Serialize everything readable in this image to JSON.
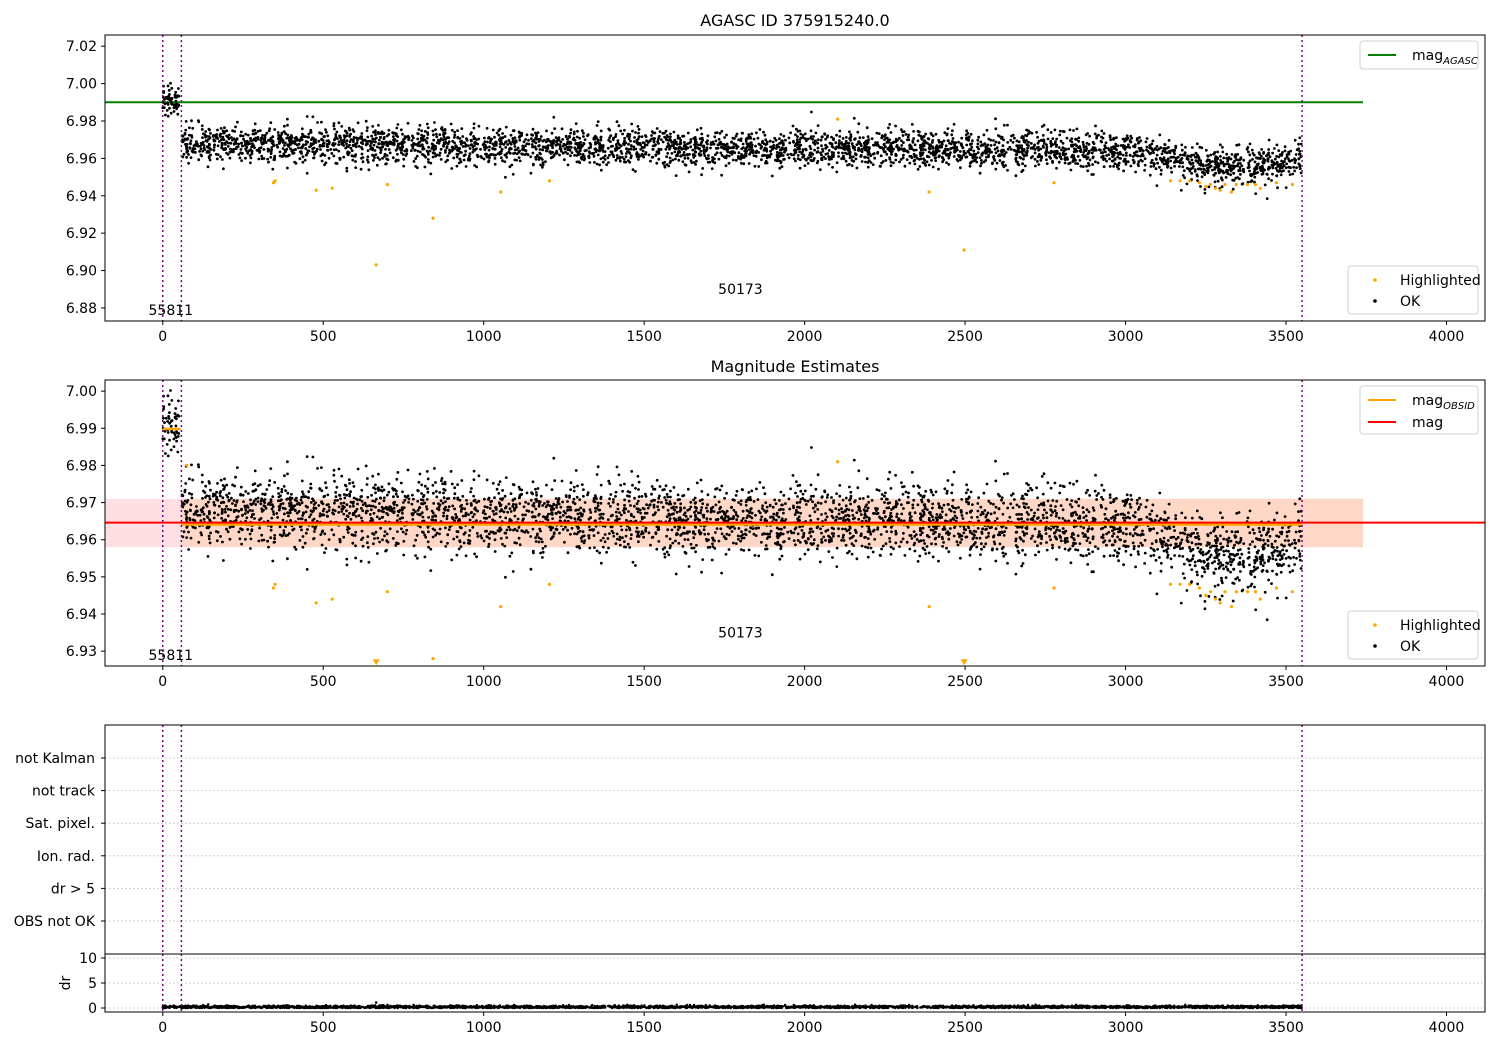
{
  "colors": {
    "ok": "#000000",
    "highlighted": "#ffa500",
    "agasc_line": "#008000",
    "mag_line": "#ff0000",
    "obsid_line": "#ffa500",
    "band_outer": "#ffc0c8",
    "band_inner": "#ffd2b4",
    "vline": "#800080",
    "grid": "#b0b0b0"
  },
  "chart_data": [
    {
      "type": "scatter",
      "title": "AGASC ID 375915240.0",
      "xlim": [
        -180,
        4120
      ],
      "ylim": [
        6.873,
        7.026
      ],
      "x_ticks": [
        0,
        500,
        1000,
        1500,
        2000,
        2500,
        3000,
        3500,
        4000
      ],
      "y_ticks": [
        6.88,
        6.9,
        6.92,
        6.94,
        6.96,
        6.98,
        7.0,
        7.02
      ],
      "y_tick_labels": [
        "6.88",
        "6.90",
        "6.92",
        "6.94",
        "6.96",
        "6.98",
        "7.00",
        "7.02"
      ],
      "legend_upper": [
        {
          "label": "mag",
          "subscript": "AGASC",
          "kind": "line",
          "color": "#008000"
        }
      ],
      "legend_lower": [
        {
          "label": "Highlighted",
          "kind": "marker",
          "color": "#ffa500"
        },
        {
          "label": "OK",
          "kind": "marker",
          "color": "#000000"
        }
      ],
      "hlines": [
        {
          "name": "mag_AGASC",
          "y": 6.99,
          "x_range": [
            -180,
            3740
          ]
        }
      ],
      "obsid_vlines": [
        0,
        58,
        3550
      ],
      "annotations": [
        {
          "text": "55811",
          "x": 25,
          "y": 6.879
        },
        {
          "text": "50173",
          "x": 1800,
          "y": 6.89
        }
      ],
      "series": [
        {
          "name": "OK",
          "segments": [
            {
              "x_range": [
                0,
                50
              ],
              "mean": 6.99,
              "spread": 0.004
            },
            {
              "x_range": [
                60,
                3550
              ],
              "mean": 6.965,
              "spread": 0.005,
              "trend": [
                [
                  60,
                  6.968
                ],
                [
                  3000,
                  6.964
                ],
                [
                  3300,
                  6.955
                ],
                [
                  3550,
                  6.959
                ]
              ]
            }
          ]
        },
        {
          "name": "Highlighted",
          "points": [
            [
              345,
              6.947
            ],
            [
              350,
              6.948
            ],
            [
              478,
              6.943
            ],
            [
              528,
              6.944
            ],
            [
              700,
              6.946
            ],
            [
              842,
              6.928
            ],
            [
              665,
              6.903
            ],
            [
              1053,
              6.942
            ],
            [
              1205,
              6.948
            ],
            [
              2103,
              6.981
            ],
            [
              2388,
              6.942
            ],
            [
              2497,
              6.911
            ],
            [
              2777,
              6.947
            ],
            [
              3140,
              6.948
            ],
            [
              3170,
              6.948
            ],
            [
              3200,
              6.948
            ],
            [
              3230,
              6.947
            ],
            [
              3250,
              6.945
            ],
            [
              3265,
              6.946
            ],
            [
              3280,
              6.944
            ],
            [
              3295,
              6.943
            ],
            [
              3310,
              6.946
            ],
            [
              3330,
              6.942
            ],
            [
              3345,
              6.946
            ],
            [
              3380,
              6.946
            ],
            [
              3405,
              6.946
            ],
            [
              3420,
              6.944
            ],
            [
              3470,
              6.947
            ],
            [
              3520,
              6.946
            ]
          ]
        }
      ]
    },
    {
      "type": "scatter",
      "title": "Magnitude Estimates",
      "xlim": [
        -180,
        4120
      ],
      "ylim": [
        6.926,
        7.003
      ],
      "x_ticks": [
        0,
        500,
        1000,
        1500,
        2000,
        2500,
        3000,
        3500,
        4000
      ],
      "y_ticks": [
        6.93,
        6.94,
        6.95,
        6.96,
        6.97,
        6.98,
        6.99,
        7.0
      ],
      "y_tick_labels": [
        "6.93",
        "6.94",
        "6.95",
        "6.96",
        "6.97",
        "6.98",
        "6.99",
        "7.00"
      ],
      "legend_upper": [
        {
          "label": "mag",
          "subscript": "OBSID",
          "kind": "line",
          "color": "#ffa500"
        },
        {
          "label": "mag",
          "kind": "line",
          "color": "#ff0000"
        }
      ],
      "legend_lower": [
        {
          "label": "Highlighted",
          "kind": "marker",
          "color": "#ffa500"
        },
        {
          "label": "OK",
          "kind": "marker",
          "color": "#000000"
        }
      ],
      "hlines": [
        {
          "name": "mag",
          "y": 6.9646,
          "x_range": [
            -180,
            4120
          ]
        },
        {
          "name": "mag_OBSID_1",
          "y": 6.9898,
          "x_range": [
            0,
            55
          ]
        },
        {
          "name": "mag_OBSID_2",
          "y": 6.9641,
          "x_range": [
            58,
            3550
          ]
        }
      ],
      "bands": [
        {
          "name": "mag range",
          "y_range": [
            6.958,
            6.971
          ],
          "x_range": [
            -180,
            3740
          ]
        },
        {
          "name": "obsid range",
          "y_range": [
            6.958,
            6.971
          ],
          "x_range": [
            58,
            3740
          ]
        }
      ],
      "obsid_vlines": [
        0,
        58,
        3550
      ],
      "annotations": [
        {
          "text": "55811",
          "x": 25,
          "y": 6.929
        },
        {
          "text": "50173",
          "x": 1800,
          "y": 6.935
        }
      ],
      "series": [
        {
          "name": "OK",
          "segments": [
            {
              "x_range": [
                0,
                50
              ],
              "mean": 6.99,
              "spread": 0.004
            },
            {
              "x_range": [
                60,
                3550
              ],
              "mean": 6.965,
              "spread": 0.005,
              "trend": [
                [
                  60,
                  6.968
                ],
                [
                  3000,
                  6.964
                ],
                [
                  3300,
                  6.955
                ],
                [
                  3550,
                  6.959
                ]
              ]
            }
          ]
        },
        {
          "name": "Highlighted",
          "points": [
            [
              75,
              6.98
            ],
            [
              345,
              6.947
            ],
            [
              350,
              6.948
            ],
            [
              478,
              6.943
            ],
            [
              528,
              6.944
            ],
            [
              700,
              6.946
            ],
            [
              842,
              6.928
            ],
            [
              1053,
              6.942
            ],
            [
              1205,
              6.948
            ],
            [
              2103,
              6.981
            ],
            [
              2388,
              6.942
            ],
            [
              2777,
              6.947
            ],
            [
              3140,
              6.948
            ],
            [
              3170,
              6.948
            ],
            [
              3200,
              6.948
            ],
            [
              3230,
              6.947
            ],
            [
              3250,
              6.945
            ],
            [
              3265,
              6.946
            ],
            [
              3280,
              6.944
            ],
            [
              3295,
              6.943
            ],
            [
              3310,
              6.946
            ],
            [
              3330,
              6.942
            ],
            [
              3345,
              6.946
            ],
            [
              3380,
              6.946
            ],
            [
              3405,
              6.946
            ],
            [
              3420,
              6.944
            ],
            [
              3470,
              6.947
            ],
            [
              3520,
              6.946
            ]
          ]
        },
        {
          "name": "Highlighted (below range)",
          "marker": "triangle-down",
          "points": [
            [
              665,
              6.927
            ],
            [
              2497,
              6.927
            ]
          ]
        }
      ]
    },
    {
      "type": "table",
      "title": "",
      "xlim": [
        -180,
        4120
      ],
      "categories": [
        "not Kalman",
        "not track",
        "Sat. pixel.",
        "Ion. rad.",
        "dr > 5",
        "OBS not OK"
      ],
      "grid": true,
      "obsid_vlines": [
        0,
        58,
        3550
      ],
      "flag_values": []
    },
    {
      "type": "scatter",
      "title": "",
      "xlim": [
        -180,
        4120
      ],
      "ylim": [
        -0.8,
        10.8
      ],
      "x_ticks": [
        0,
        500,
        1000,
        1500,
        2000,
        2500,
        3000,
        3500,
        4000
      ],
      "y_ticks": [
        0,
        5,
        10
      ],
      "y_tick_labels": [
        "0",
        "5",
        "10"
      ],
      "ylabel": "dr",
      "grid": true,
      "obsid_vlines": [
        0,
        58,
        3550
      ],
      "series": [
        {
          "name": "dr",
          "x_range": [
            0,
            3550
          ],
          "mean": 0.2,
          "spread": 0.15,
          "outliers": [
            [
              665,
              1.1
            ]
          ]
        }
      ]
    }
  ]
}
